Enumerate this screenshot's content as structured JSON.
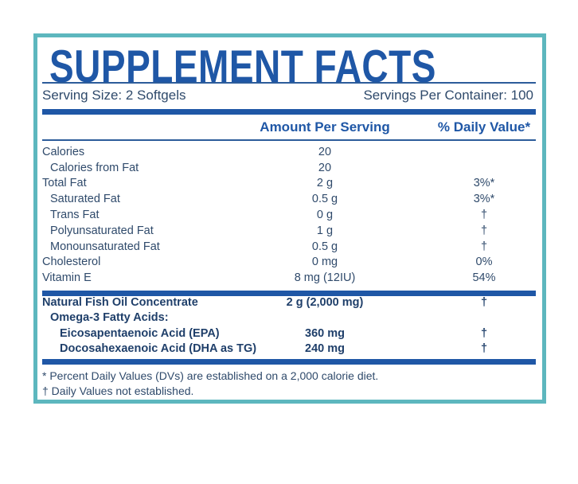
{
  "header": {
    "title": "SUPPLEMENT FACTS",
    "serving_size": "Serving Size: 2 Softgels",
    "servings_per_container": "Servings Per Container: 100"
  },
  "columns": {
    "amount": "Amount Per Serving",
    "daily_value": "% Daily Value*"
  },
  "rows": [
    {
      "label": "Calories",
      "amount": "20"
    },
    {
      "label": "Calories from Fat",
      "amount": "20"
    },
    {
      "label": "Total Fat",
      "amount": "2 g",
      "daily_value": "3%*"
    },
    {
      "label": "Saturated Fat",
      "amount": "0.5 g",
      "daily_value": "3%*"
    },
    {
      "label": "Trans Fat",
      "amount": "0 g",
      "daily_value": "†"
    },
    {
      "label": "Polyunsaturated Fat",
      "amount": "1 g",
      "daily_value": "†"
    },
    {
      "label": "Monounsaturated Fat",
      "amount": "0.5 g",
      "daily_value": "†"
    },
    {
      "label": "Cholesterol",
      "amount": "0 mg",
      "daily_value": "0%"
    },
    {
      "label": "Vitamin E",
      "amount": "8 mg (12IU)",
      "daily_value": "54%"
    }
  ],
  "oil_rows": [
    {
      "label": "Natural Fish Oil Concentrate",
      "amount": "2 g (2,000 mg)",
      "daily_value": "†"
    },
    {
      "label": "Omega-3 Fatty Acids:"
    },
    {
      "label": "Eicosapentaenoic Acid (EPA)",
      "amount": "360 mg",
      "daily_value": "†"
    },
    {
      "label": "Docosahexaenoic Acid (DHA as TG)",
      "amount": "240 mg",
      "daily_value": "†"
    }
  ],
  "footnotes": [
    "* Percent Daily Values (DVs) are established on a 2,000 calorie diet.",
    "† Daily Values not established."
  ]
}
